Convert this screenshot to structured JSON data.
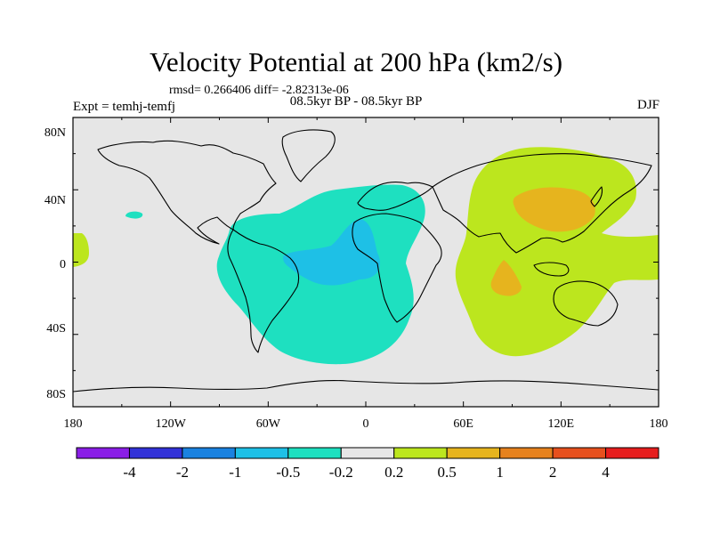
{
  "title": "Velocity Potential at 200 hPa (km2/s)",
  "stats": "rmsd= 0.266406 diff= -2.82313e-06",
  "experiment": "Expt = temhj-temfj",
  "period": "08.5kyr BP - 08.5kyr BP",
  "season": "DJF",
  "axes": {
    "lon_ticks": [
      "180",
      "120W",
      "60W",
      "0",
      "60E",
      "120E",
      "180"
    ],
    "lat_ticks": [
      "80N",
      "40N",
      "0",
      "40S",
      "80S"
    ]
  },
  "colorbar": {
    "colors": [
      "#8a1ee6",
      "#3232d8",
      "#1a82e0",
      "#1ec0e6",
      "#1ee0c0",
      "#e6e6e6",
      "#bce61e",
      "#e6b41e",
      "#e6821e",
      "#e6501e",
      "#e61e1e"
    ],
    "labels": [
      "-4",
      "-2",
      "-1",
      "-0.5",
      "-0.2",
      "0.2",
      "0.5",
      "1",
      "2",
      "4"
    ]
  },
  "background_color": "#e6e6e6"
}
